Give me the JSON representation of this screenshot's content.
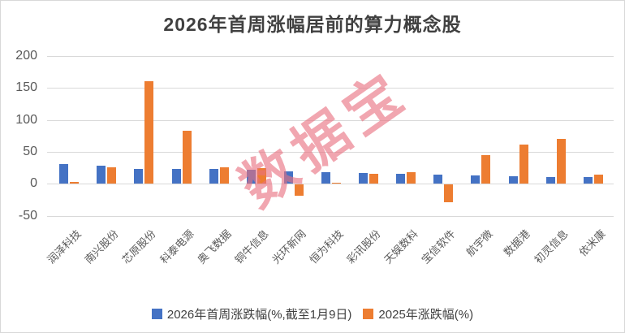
{
  "title": "2026年首周涨幅居前的算力概念股",
  "watermark_text": "数据宝",
  "colors": {
    "series1": "#4472C4",
    "series2": "#ED7D31",
    "gridline": "#d9d9d9",
    "axis_text": "#595959",
    "title_text": "#404040",
    "watermark": "#e97180"
  },
  "legend": {
    "items": [
      {
        "label": "2026年首周涨跌幅(%,截至1月9日)",
        "color": "#4472C4"
      },
      {
        "label": "2025年涨跌幅(%)",
        "color": "#ED7D31"
      }
    ]
  },
  "chart_data": {
    "type": "bar",
    "title": "2026年首周涨幅居前的算力概念股",
    "categories": [
      "润泽科技",
      "南兴股份",
      "芯原股份",
      "科泰电源",
      "奥飞数据",
      "铜牛信息",
      "光环新网",
      "恒为科技",
      "彩讯股份",
      "天娱数科",
      "宝信软件",
      "航宇微",
      "数据港",
      "初灵信息",
      "依米康"
    ],
    "series": [
      {
        "name": "2026年首周涨跌幅(%,截至1月9日)",
        "color": "#4472C4",
        "values": [
          31,
          28,
          23,
          23,
          23,
          22,
          19,
          18,
          17,
          15,
          14,
          13,
          12,
          11,
          10
        ]
      },
      {
        "name": "2025年涨跌幅(%)",
        "color": "#ED7D31",
        "values": [
          3,
          26,
          161,
          83,
          26,
          25,
          -18,
          2,
          15,
          18,
          -28,
          45,
          62,
          70,
          14
        ]
      }
    ],
    "xlabel": "",
    "ylabel": "",
    "ylim": [
      -50,
      200
    ],
    "yticks": [
      200,
      150,
      100,
      50,
      0,
      -50
    ],
    "grid": true,
    "legend_position": "bottom"
  }
}
